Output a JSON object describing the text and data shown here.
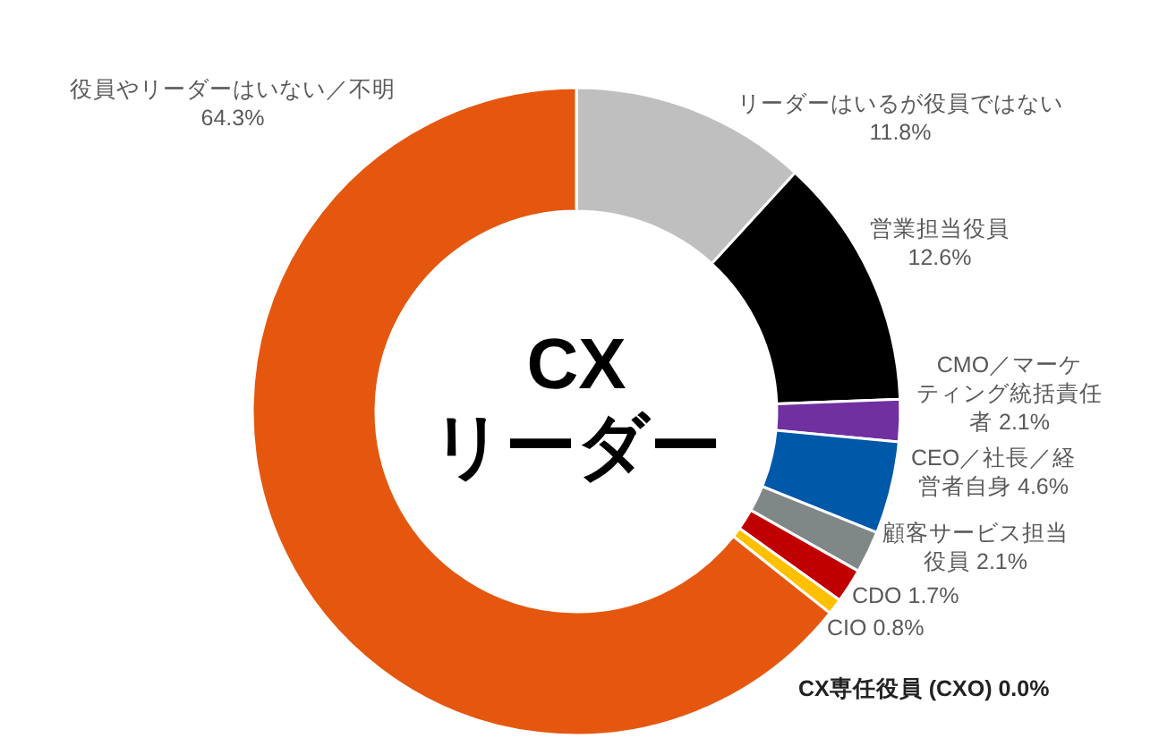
{
  "chart_data": {
    "type": "donut",
    "title": "CX\nリーダー",
    "categories": [
      "リーダーはいるが役員ではない",
      "営業担当役員",
      "CMO／マーケティング統括責任者",
      "CEO／社長／経営者自身",
      "顧客サービス担当役員",
      "CDO",
      "CIO",
      "CX専任役員 (CXO)",
      "役員やリーダーはいない／不明"
    ],
    "values": [
      11.8,
      12.6,
      2.1,
      4.6,
      2.1,
      1.7,
      0.8,
      0.0,
      64.3
    ],
    "colors": [
      "#bfbfbf",
      "#000000",
      "#7030a0",
      "#0058a8",
      "#7f8787",
      "#c00000",
      "#ffc000",
      "#4472c4",
      "#e5570f"
    ],
    "value_labels": [
      "11.8%",
      "12.6%",
      "2.1%",
      "4.6%",
      "2.1%",
      "1.7%",
      "0.8%",
      "0.0%",
      "64.3%"
    ],
    "legend": false
  }
}
